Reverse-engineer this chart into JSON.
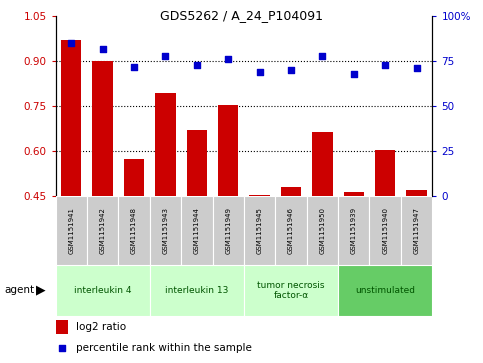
{
  "title": "GDS5262 / A_24_P104091",
  "samples": [
    "GSM1151941",
    "GSM1151942",
    "GSM1151948",
    "GSM1151943",
    "GSM1151944",
    "GSM1151949",
    "GSM1151945",
    "GSM1151946",
    "GSM1151950",
    "GSM1151939",
    "GSM1151940",
    "GSM1151947"
  ],
  "log2_ratio": [
    0.97,
    0.9,
    0.575,
    0.795,
    0.67,
    0.755,
    0.455,
    0.48,
    0.665,
    0.465,
    0.605,
    0.47
  ],
  "percentile": [
    85,
    82,
    72,
    78,
    73,
    76,
    69,
    70,
    78,
    68,
    73,
    71
  ],
  "bar_color": "#cc0000",
  "dot_color": "#0000cc",
  "ylim_left": [
    0.45,
    1.05
  ],
  "ylim_right": [
    0,
    100
  ],
  "yticks_left": [
    0.45,
    0.6,
    0.75,
    0.9,
    1.05
  ],
  "yticks_right": [
    0,
    25,
    50,
    75,
    100
  ],
  "groups": [
    {
      "label": "interleukin 4",
      "start": 0,
      "end": 3,
      "color": "#ccffcc"
    },
    {
      "label": "interleukin 13",
      "start": 3,
      "end": 6,
      "color": "#ccffcc"
    },
    {
      "label": "tumor necrosis\nfactor-α",
      "start": 6,
      "end": 9,
      "color": "#ccffcc"
    },
    {
      "label": "unstimulated",
      "start": 9,
      "end": 12,
      "color": "#66cc66"
    }
  ],
  "agent_label": "agent",
  "legend_bar_label": "log2 ratio",
  "legend_dot_label": "percentile rank within the sample",
  "plot_bg": "#ffffff",
  "grid_color": "#000000",
  "tick_label_color_left": "#cc0000",
  "tick_label_color_right": "#0000cc",
  "sample_box_color": "#cccccc",
  "group_text_color": "#005500"
}
